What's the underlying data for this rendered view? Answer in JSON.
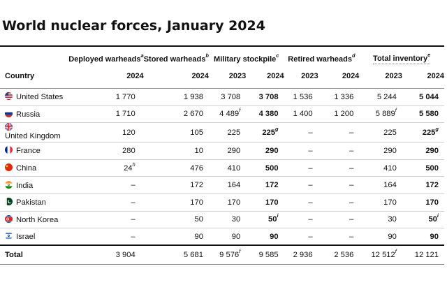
{
  "title": "World nuclear forces, January 2024",
  "headers": {
    "deployed": "Deployed warheads",
    "deployed_fn": "a",
    "stored": "Stored warheads",
    "stored_fn": "b",
    "military": "Military stockpile",
    "military_fn": "c",
    "retired": "Retired warheads",
    "retired_fn": "d",
    "total": "Total inventory",
    "total_fn": "e",
    "country": "Country",
    "years": [
      "2024",
      "2024",
      "2023",
      "2024",
      "2023",
      "2024",
      "2023",
      "2024"
    ]
  },
  "rows": [
    {
      "country": "United States",
      "flag": "us-flag-icon",
      "deployed": "1 770",
      "stored": "1 938",
      "mil2023": "3 708",
      "mil2024": "3 708",
      "ret2023": "1 536",
      "ret2024": "1 336",
      "tot2023": "5 244",
      "tot2024": "5 044"
    },
    {
      "country": "Russia",
      "flag": "russia-flag-icon",
      "deployed": "1 710",
      "stored": "2 670",
      "mil2023": "4 489",
      "mil2023_fn": "f",
      "mil2024": "4 380",
      "ret2023": "1 400",
      "ret2024": "1 200",
      "tot2023": "5 889",
      "tot2023_fn": "f",
      "tot2024": "5 580"
    },
    {
      "country": "United Kingdom",
      "flag": "uk-flag-icon",
      "deployed": "120",
      "stored": "105",
      "mil2023": "225",
      "mil2024": "225",
      "mil2024_fn": "g",
      "ret2023": "–",
      "ret2024": "–",
      "tot2023": "225",
      "tot2024": "225",
      "tot2024_fn": "g"
    },
    {
      "country": "France",
      "flag": "france-flag-icon",
      "deployed": "280",
      "stored": "10",
      "mil2023": "290",
      "mil2024": "290",
      "ret2023": "–",
      "ret2024": "–",
      "tot2023": "290",
      "tot2024": "290"
    },
    {
      "country": "China",
      "flag": "china-flag-icon",
      "deployed": "24",
      "deployed_fn": "h",
      "stored": "476",
      "mil2023": "410",
      "mil2024": "500",
      "ret2023": "–",
      "ret2024": "–",
      "tot2023": "410",
      "tot2024": "500"
    },
    {
      "country": "India",
      "flag": "india-flag-icon",
      "deployed": "–",
      "stored": "172",
      "mil2023": "164",
      "mil2024": "172",
      "ret2023": "–",
      "ret2024": "–",
      "tot2023": "164",
      "tot2024": "172"
    },
    {
      "country": "Pakistan",
      "flag": "pakistan-flag-icon",
      "deployed": "–",
      "stored": "170",
      "mil2023": "170",
      "mil2024": "170",
      "ret2023": "–",
      "ret2024": "–",
      "tot2023": "170",
      "tot2024": "170"
    },
    {
      "country": "North Korea",
      "flag": "north-korea-flag-icon",
      "deployed": "–",
      "stored": "50",
      "mil2023": "30",
      "mil2024": "50",
      "mil2024_fn": "i",
      "ret2023": "–",
      "ret2024": "–",
      "tot2023": "30",
      "tot2024": "50",
      "tot2024_fn": "i"
    },
    {
      "country": "Israel",
      "flag": "israel-flag-icon",
      "deployed": "–",
      "stored": "90",
      "mil2023": "90",
      "mil2024": "90",
      "ret2023": "–",
      "ret2024": "–",
      "tot2023": "90",
      "tot2024": "90"
    }
  ],
  "total": {
    "label": "Total",
    "deployed": "3 904",
    "stored": "5 681",
    "mil2023": "9 576",
    "mil2023_fn": "f",
    "mil2024": "9 585",
    "ret2023": "2 936",
    "ret2024": "2 536",
    "tot2023": "12 512",
    "tot2023_fn": "f",
    "tot2024": "12 121"
  }
}
